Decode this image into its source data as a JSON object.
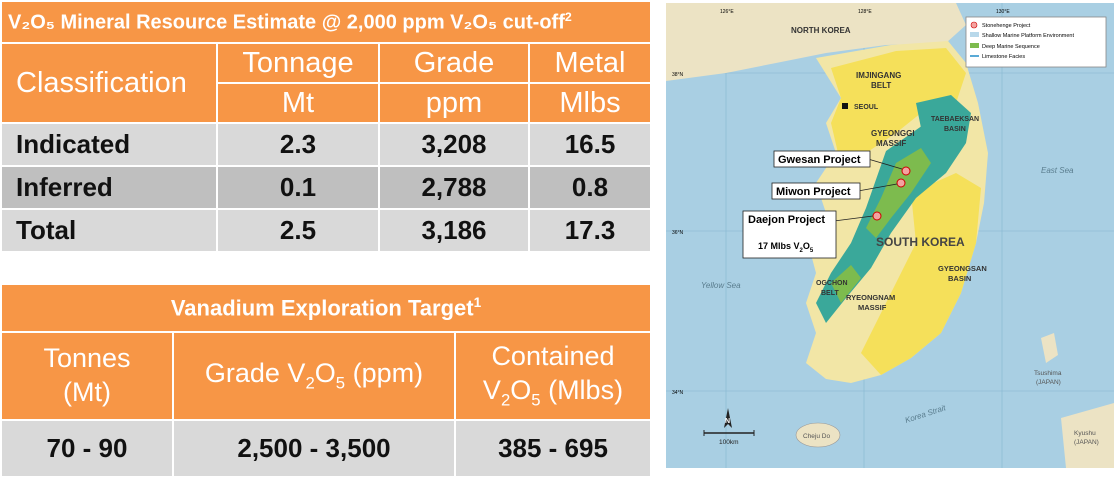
{
  "resource_table": {
    "title": "V₂O₅ Mineral Resource Estimate @ 2,000 ppm V₂O₅ cut-off",
    "title_sup": "2",
    "headers": {
      "classification": "Classification",
      "tonnage": "Tonnage",
      "tonnage_unit": "Mt",
      "grade": "Grade",
      "grade_unit": "ppm",
      "metal": "Metal",
      "metal_unit": "Mlbs"
    },
    "rows": [
      {
        "label": "Indicated",
        "tonnage": "2.3",
        "grade": "3,208",
        "metal": "16.5"
      },
      {
        "label": "Inferred",
        "tonnage": "0.1",
        "grade": "2,788",
        "metal": "0.8"
      },
      {
        "label": "Total",
        "tonnage": "2.5",
        "grade": "3,186",
        "metal": "17.3"
      }
    ]
  },
  "target_table": {
    "title": "Vanadium Exploration Target",
    "title_sup": "1",
    "headers": {
      "tonnes_line1": "Tonnes",
      "tonnes_line2": "(Mt)",
      "grade_pre": "Grade V",
      "grade_sub1": "2",
      "grade_mid": "O",
      "grade_sub2": "5",
      "grade_post": " (ppm)",
      "contained_line1": "Contained",
      "contained_pre": "V",
      "contained_sub1": "2",
      "contained_mid": "O",
      "contained_sub2": "5",
      "contained_post": " (Mlbs)"
    },
    "row": {
      "tonnes": "70 - 90",
      "grade": "2,500 - 3,500",
      "contained": "385 - 695"
    }
  },
  "map": {
    "legend": [
      {
        "label": "Stonehenge Project",
        "color": "#f4a3a0"
      },
      {
        "label": "Shallow Marine Platform Environment",
        "color": "#b8d8ea"
      },
      {
        "label": "Deep Marine Sequence",
        "color": "#7dbb4e"
      },
      {
        "label": "Limestone Facies",
        "color": "#5aaad6"
      }
    ],
    "labels": {
      "north_korea": "NORTH KOREA",
      "imjingang": "IMJINGANG",
      "imjingang2": "BELT",
      "seoul": "SEOUL",
      "gyeonggi": "GYEONGGI",
      "gyeonggi2": "MASSIF",
      "taebaeksan": "TAEBAEKSAN",
      "taebaeksan2": "BASIN",
      "east_sea": "East Sea",
      "yellow_sea": "Yellow Sea",
      "south_korea": "SOUTH KOREA",
      "ogchon": "OGCHON",
      "ogchon2": "BELT",
      "gyeongsan": "GYEONGSAN",
      "gyeongsan2": "BASIN",
      "ryeongnam": "RYEONGNAM",
      "ryeongnam2": "MASSIF",
      "tsushima": "Tsushima",
      "tsushima2": "(JAPAN)",
      "korea_strait": "Korea Strait",
      "cheju": "Cheju Do",
      "kyushu": "Kyushu",
      "kyushu2": "(JAPAN)",
      "scale": "100km",
      "north": "N",
      "lon1": "126°E",
      "lon2": "128°E",
      "lon3": "130°E",
      "lat1": "38°N",
      "lat2": "36°N",
      "lat3": "34°N"
    },
    "projects": [
      {
        "name": "Gwesan Project"
      },
      {
        "name": "Miwon Project"
      },
      {
        "name": "Daejon Project",
        "note_pre": "17 Mlbs  V",
        "note_sub1": "2",
        "note_mid": "O",
        "note_sub2": "5"
      }
    ]
  }
}
